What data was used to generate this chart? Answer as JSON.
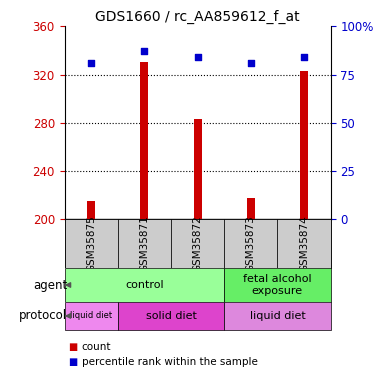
{
  "title": "GDS1660 / rc_AA859612_f_at",
  "samples": [
    "GSM35875",
    "GSM35871",
    "GSM35872",
    "GSM35873",
    "GSM35874"
  ],
  "bar_values": [
    215,
    330,
    283,
    218,
    323
  ],
  "percentile_values": [
    81,
    87,
    84,
    81,
    84
  ],
  "bar_color": "#cc0000",
  "dot_color": "#0000cc",
  "ylim_left": [
    200,
    360
  ],
  "ylim_right": [
    0,
    100
  ],
  "yticks_left": [
    200,
    240,
    280,
    320,
    360
  ],
  "yticks_right": [
    0,
    25,
    50,
    75,
    100
  ],
  "yticklabels_right": [
    "0",
    "25",
    "50",
    "75",
    "100%"
  ],
  "agent_groups": [
    {
      "label": "control",
      "span": [
        0,
        3
      ],
      "color": "#99ff99"
    },
    {
      "label": "fetal alcohol\nexposure",
      "span": [
        3,
        5
      ],
      "color": "#66ee66"
    }
  ],
  "protocol_groups": [
    {
      "label": "liquid diet",
      "span": [
        0,
        1
      ],
      "color": "#ee88ee"
    },
    {
      "label": "solid diet",
      "span": [
        1,
        3
      ],
      "color": "#dd44cc"
    },
    {
      "label": "liquid diet",
      "span": [
        3,
        5
      ],
      "color": "#dd88dd"
    }
  ],
  "legend_items": [
    {
      "color": "#cc0000",
      "label": "count"
    },
    {
      "color": "#0000cc",
      "label": "percentile rank within the sample"
    }
  ],
  "label_color_left": "#cc0000",
  "label_color_right": "#0000cc",
  "bar_bottom": 200,
  "bar_width": 0.15
}
